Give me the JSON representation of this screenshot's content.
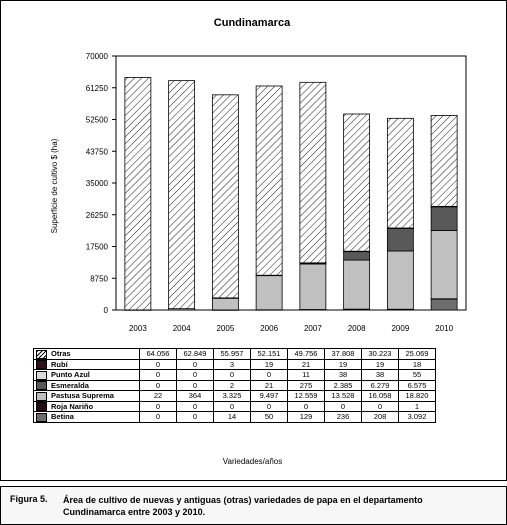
{
  "chart_data": {
    "type": "bar",
    "stacked": true,
    "title": "Cundinamarca",
    "ylabel": "Superficie de cultivo $ (ha)",
    "xlabel": "Variedades/años",
    "ylim": [
      0,
      70000
    ],
    "yticks": [
      "70000",
      "61250",
      "52500",
      "43750",
      "35000",
      "26250",
      "17500",
      "8750",
      "0"
    ],
    "categories": [
      "2003",
      "2004",
      "2005",
      "2006",
      "2007",
      "2008",
      "2009",
      "2010"
    ],
    "series": [
      {
        "name": "Otras",
        "values": [
          64056,
          62849,
          55957,
          52151,
          49756,
          37808,
          30223,
          25069
        ],
        "labels": [
          "64.056",
          "62.849",
          "55.957",
          "52.151",
          "49.756",
          "37.808",
          "30.223",
          "25.069"
        ],
        "swatch": "hatch",
        "color": "#ffffff"
      },
      {
        "name": "Rubí",
        "values": [
          0,
          0,
          3,
          19,
          21,
          19,
          19,
          18
        ],
        "labels": [
          "0",
          "0",
          "3",
          "19",
          "21",
          "19",
          "19",
          "18"
        ],
        "swatch": "solid",
        "color": "#3b0d14"
      },
      {
        "name": "Punto Azul",
        "values": [
          0,
          0,
          0,
          0,
          11,
          38,
          38,
          55
        ],
        "labels": [
          "0",
          "0",
          "0",
          "0",
          "11",
          "38",
          "38",
          "55"
        ],
        "swatch": "solid",
        "color": "#d9d9d9"
      },
      {
        "name": "Esmeralda",
        "values": [
          0,
          0,
          2,
          21,
          275,
          2385,
          6279,
          6575
        ],
        "labels": [
          "0",
          "0",
          "2",
          "21",
          "275",
          "2.385",
          "6.279",
          "6.575"
        ],
        "swatch": "solid",
        "color": "#595959"
      },
      {
        "name": "Pastusa Suprema",
        "values": [
          22,
          364,
          3325,
          9497,
          12559,
          13528,
          16058,
          18820
        ],
        "labels": [
          "22",
          "364",
          "3.325",
          "9.497",
          "12.559",
          "13.528",
          "16.058",
          "18.820"
        ],
        "swatch": "solid",
        "color": "#c0c0c0"
      },
      {
        "name": "Roja Nariño",
        "values": [
          0,
          0,
          0,
          0,
          0,
          0,
          0,
          1
        ],
        "labels": [
          "0",
          "0",
          "0",
          "0",
          "0",
          "0",
          "0",
          "1"
        ],
        "swatch": "solid",
        "color": "#2a0a0e"
      },
      {
        "name": "Betina",
        "values": [
          0,
          0,
          14,
          50,
          129,
          236,
          208,
          3092
        ],
        "labels": [
          "0",
          "0",
          "14",
          "50",
          "129",
          "236",
          "208",
          "3.092"
        ],
        "swatch": "solid",
        "color": "#6e6e6e"
      }
    ],
    "stack_order_bottom_to_top": [
      "Betina",
      "Roja Nariño",
      "Pastusa Suprema",
      "Esmeralda",
      "Punto Azul",
      "Rubí",
      "Otras"
    ],
    "grid": false,
    "legend": "table-below"
  },
  "caption": {
    "label": "Figura 5.",
    "text": "Área de cultivo de nuevas y antiguas (otras) variedades de papa en el departamento Cundinamarca entre 2003 y 2010."
  }
}
